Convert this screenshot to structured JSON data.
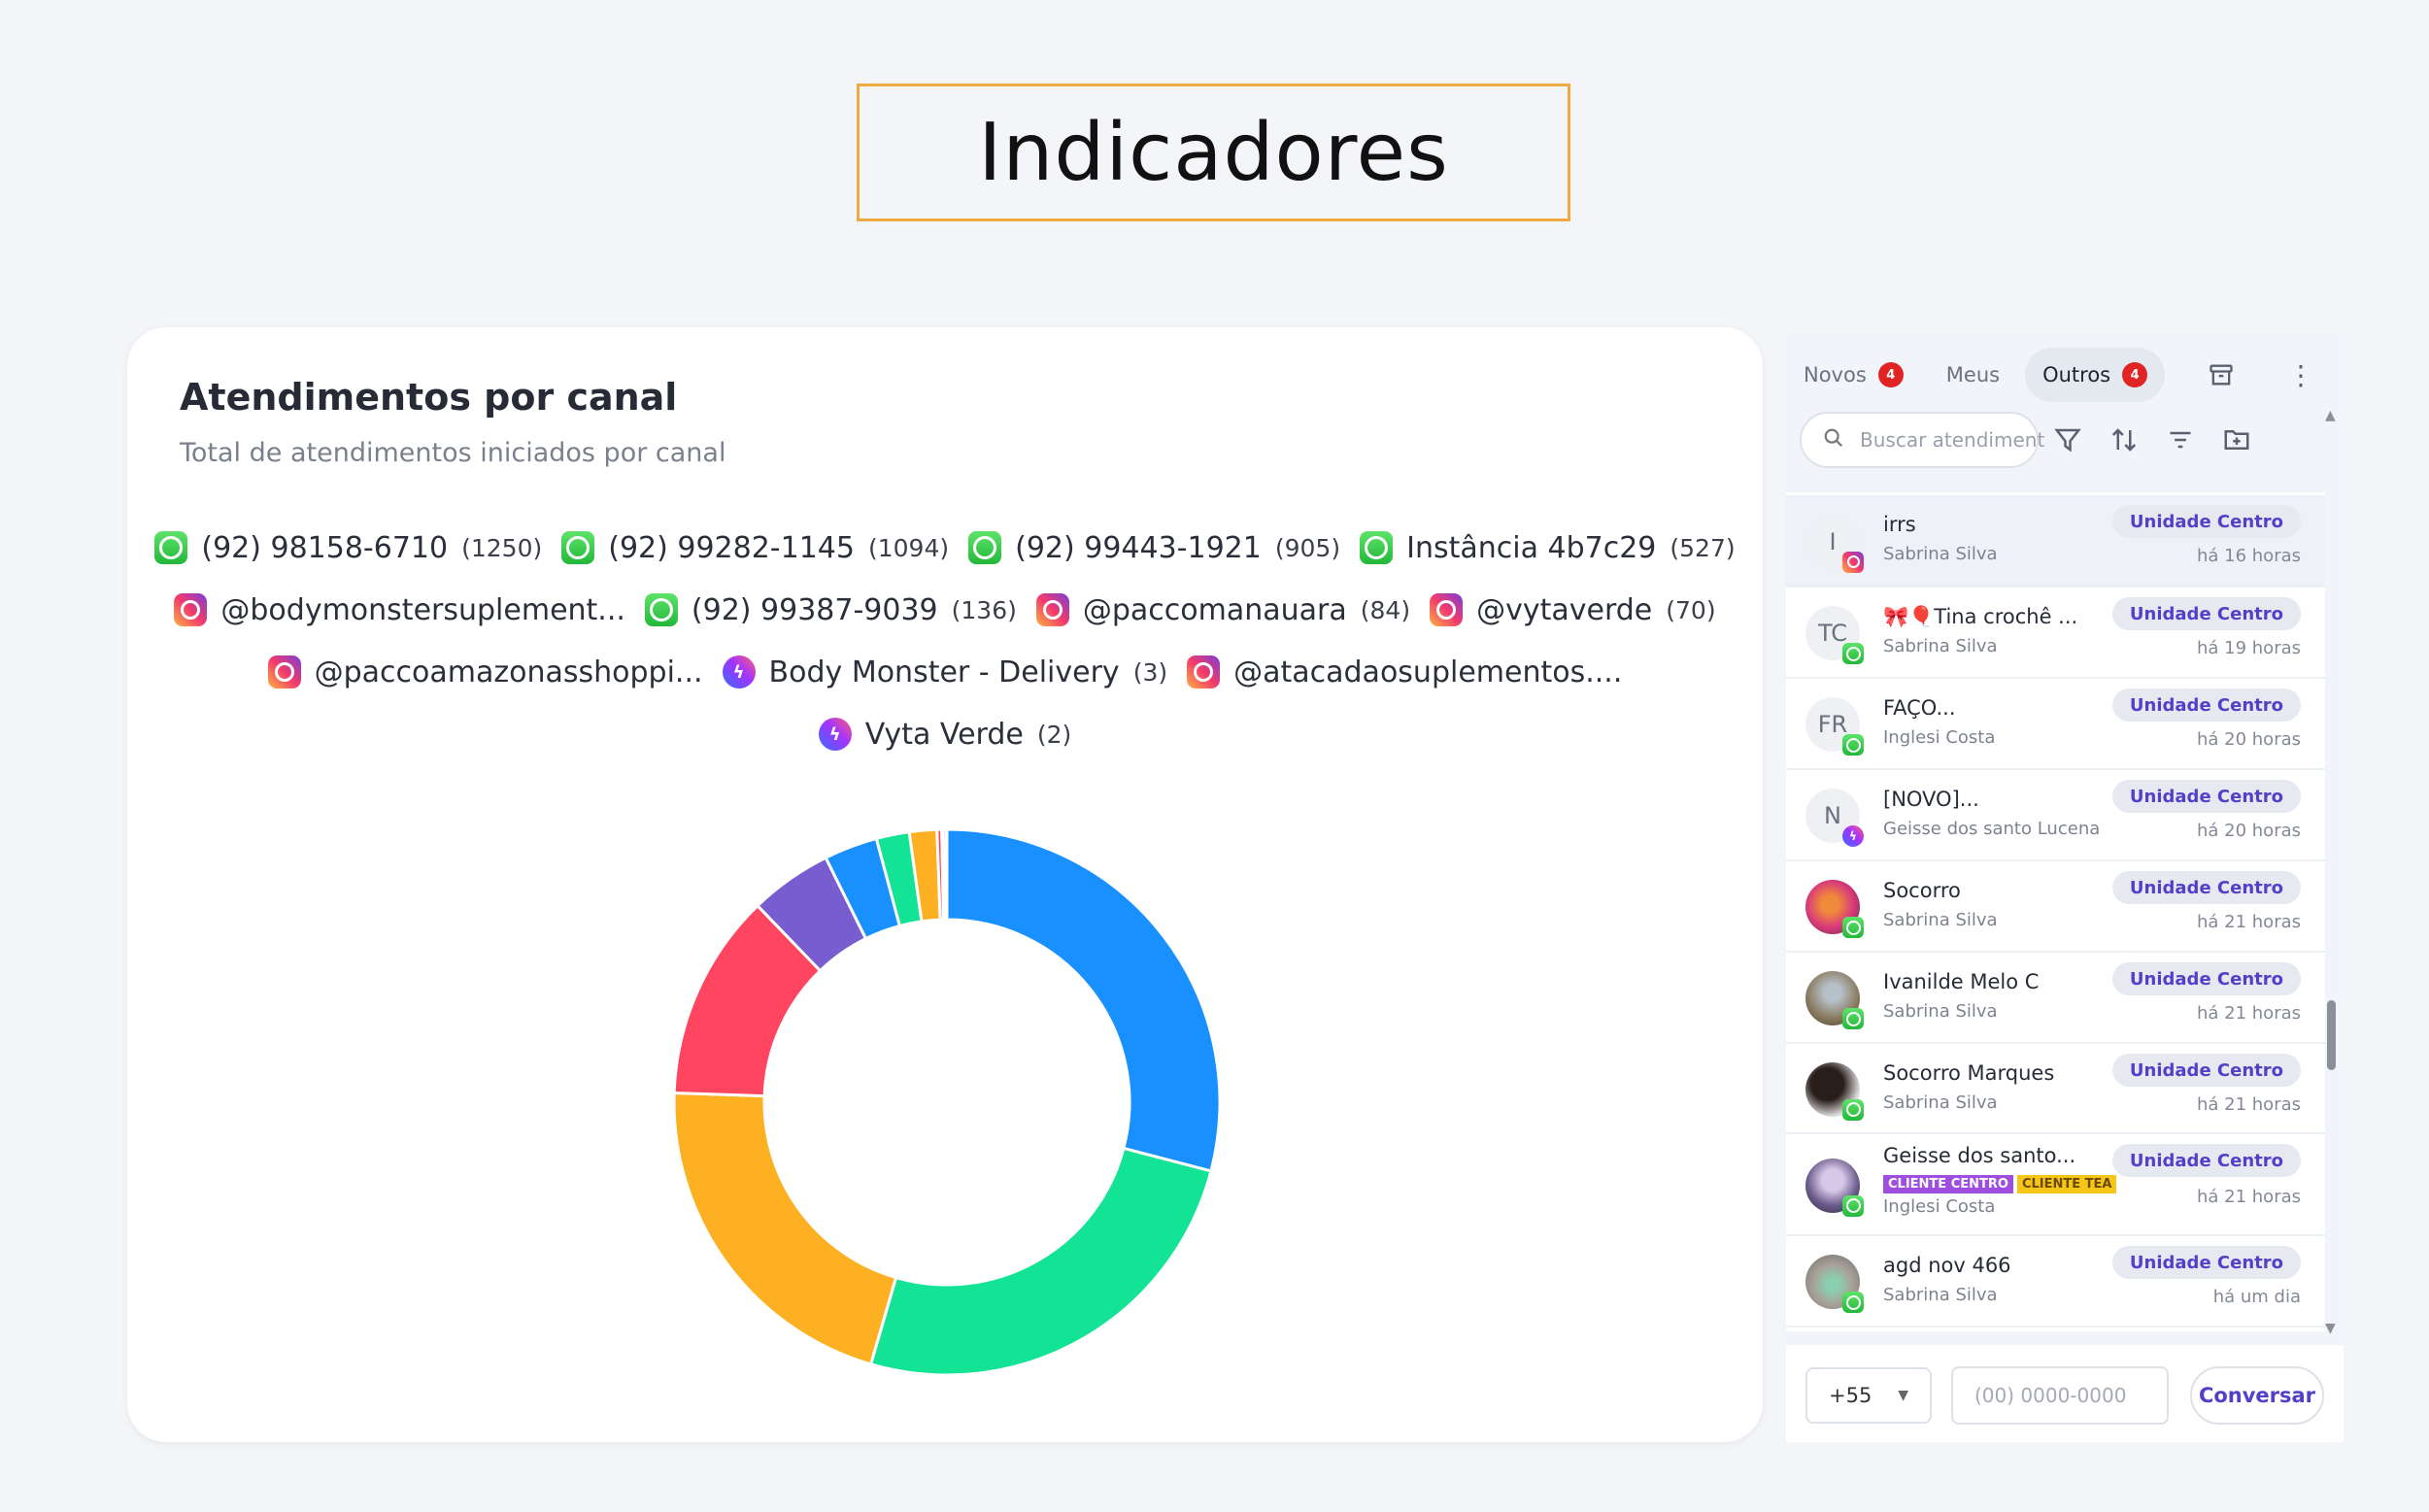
{
  "page_title": "Indicadores",
  "card": {
    "title": "Atendimentos por canal",
    "subtitle": "Total de atendimentos iniciados por canal"
  },
  "legend": [
    {
      "icon": "whatsapp-icon",
      "label": "(92) 98158-6710",
      "count": "(1250)"
    },
    {
      "icon": "whatsapp-icon",
      "label": "(92) 99282-1145",
      "count": "(1094)"
    },
    {
      "icon": "whatsapp-icon",
      "label": "(92) 99443-1921",
      "count": "(905)"
    },
    {
      "icon": "whatsapp-icon",
      "label": "Instância 4b7c29",
      "count": "(527)"
    },
    {
      "icon": "instagram-icon",
      "label": "@bodymonstersuplement...",
      "count": ""
    },
    {
      "icon": "whatsapp-icon",
      "label": "(92) 99387-9039",
      "count": "(136)"
    },
    {
      "icon": "instagram-icon",
      "label": "@paccomanauara",
      "count": "(84)"
    },
    {
      "icon": "instagram-icon",
      "label": "@vytaverde",
      "count": "(70)"
    },
    {
      "icon": "instagram-icon",
      "label": "@paccoamazonasshoppi...",
      "count": ""
    },
    {
      "icon": "messenger-icon",
      "label": "Body Monster - Delivery",
      "count": "(3)"
    },
    {
      "icon": "instagram-icon",
      "label": "@atacadaosuplementos....",
      "count": ""
    },
    {
      "icon": "messenger-icon",
      "label": "Vyta Verde",
      "count": "(2)"
    }
  ],
  "chart_data": {
    "type": "pie",
    "donut": true,
    "title": "Atendimentos por canal",
    "subtitle": "Total de atendimentos iniciados por canal",
    "legend_position": "top",
    "categories": [
      "(92) 98158-6710",
      "(92) 99282-1145",
      "(92) 99443-1921",
      "Instância 4b7c29",
      "@bodymonstersuplement...",
      "(92) 99387-9039",
      "@paccomanauara",
      "@vytaverde",
      "@paccoamazonasshoppi...",
      "Body Monster - Delivery",
      "@atacadaosuplementos....",
      "Vyta Verde"
    ],
    "values": [
      1250,
      1094,
      905,
      527,
      210,
      136,
      84,
      70,
      12,
      3,
      8,
      2
    ],
    "colors": [
      "#1890ff",
      "#13e394",
      "#fdb022",
      "#ff4560",
      "#775dd0",
      "#1890ff",
      "#13e394",
      "#fdb022",
      "#ff4560",
      "#775dd0",
      "#1890ff",
      "#13e394"
    ]
  },
  "panel": {
    "tabs": [
      {
        "label": "Novos",
        "badge": "4"
      },
      {
        "label": "Meus",
        "badge": ""
      },
      {
        "label": "Outros",
        "badge": "4",
        "active": true
      }
    ],
    "search_placeholder": "Buscar atendimento",
    "conversations": [
      {
        "initials": "I",
        "name": "irrs",
        "agent": "Sabrina Silva",
        "unit": "Unidade Centro",
        "time": "há 16 horas",
        "channel": "instagram-icon"
      },
      {
        "initials": "TC",
        "name": "🎀🎈Tina crochê ...",
        "agent": "Sabrina Silva",
        "unit": "Unidade Centro",
        "time": "há 19 horas",
        "channel": "whatsapp-icon"
      },
      {
        "initials": "FR",
        "name": "FAÇO...",
        "agent": "Inglesi Costa",
        "unit": "Unidade Centro",
        "time": "há 20 horas",
        "channel": "whatsapp-icon"
      },
      {
        "initials": "N",
        "name": "[NOVO]...",
        "agent": "Geisse dos santo Lucena",
        "unit": "Unidade Centro",
        "time": "há 20 horas",
        "channel": "messenger-icon"
      },
      {
        "initials": "",
        "name": "Socorro",
        "agent": "Sabrina Silva",
        "unit": "Unidade Centro",
        "time": "há 21 horas",
        "channel": "whatsapp-icon"
      },
      {
        "initials": "",
        "name": "Ivanilde Melo C",
        "agent": "Sabrina Silva",
        "unit": "Unidade Centro",
        "time": "há 21 horas",
        "channel": "whatsapp-icon"
      },
      {
        "initials": "",
        "name": "Socorro Marques",
        "agent": "Sabrina Silva",
        "unit": "Unidade Centro",
        "time": "há 21 horas",
        "channel": "whatsapp-icon"
      },
      {
        "initials": "",
        "name": "Geisse dos santo...",
        "agent": "Inglesi Costa",
        "unit": "Unidade Centro",
        "time": "há 21 horas",
        "channel": "whatsapp-icon",
        "tags": [
          {
            "label": "CLIENTE CENTRO",
            "color": "#a04ee0"
          },
          {
            "label": "CLIENTE TEA",
            "color": "#f5c518"
          }
        ]
      },
      {
        "initials": "",
        "name": "agd nov 466",
        "agent": "Sabrina Silva",
        "unit": "Unidade Centro",
        "time": "há um dia",
        "channel": "whatsapp-icon"
      }
    ],
    "country_code": "+55",
    "phone_placeholder": "(00) 0000-0000",
    "conversar_label": "Conversar"
  }
}
